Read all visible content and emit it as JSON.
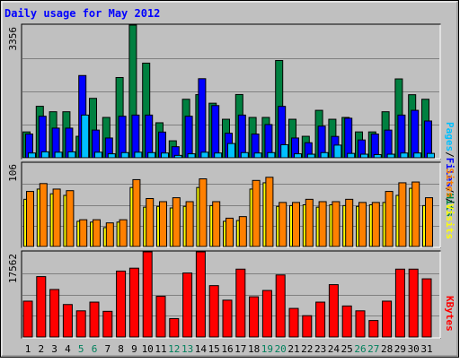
{
  "title": "Daily usage for May 2012",
  "colors": {
    "background": "#c0c0c0",
    "title": "#0000ff",
    "hits": "#008040",
    "files": "#0000ff",
    "pages": "#00c0ff",
    "visits": "#ffff00",
    "sites": "#ff8000",
    "kbytes": "#ff0000",
    "weekday_label": "#000000",
    "weekend_label": "#00805c"
  },
  "chart_data": [
    {
      "type": "bar",
      "categories": [
        "1",
        "2",
        "3",
        "4",
        "5",
        "6",
        "7",
        "8",
        "9",
        "10",
        "11",
        "12",
        "13",
        "14",
        "15",
        "16",
        "17",
        "18",
        "19",
        "20",
        "21",
        "22",
        "23",
        "24",
        "25",
        "26",
        "27",
        "28",
        "29",
        "30",
        "31"
      ],
      "weekend_days": [
        "5",
        "6",
        "12",
        "13",
        "19",
        "20",
        "26",
        "27"
      ],
      "ymax_label": "3356",
      "ylim": [
        0,
        3356
      ],
      "legend": [
        "Pages",
        "/",
        "Files",
        "/",
        "Hits"
      ],
      "series": [
        {
          "name": "Hits",
          "values": [
            654,
            1302,
            1164,
            1164,
            543,
            1503,
            1020,
            2030,
            3356,
            2394,
            885,
            429,
            1480,
            1597,
            1380,
            974,
            1600,
            1020,
            1020,
            2461,
            974,
            543,
            1200,
            974,
            1020,
            654,
            654,
            1164,
            1995,
            1595,
            1480
          ]
        },
        {
          "name": "Files",
          "values": [
            600,
            1050,
            750,
            750,
            2080,
            700,
            500,
            1050,
            1080,
            1080,
            650,
            280,
            1050,
            2000,
            1320,
            620,
            1080,
            600,
            840,
            1300,
            500,
            380,
            800,
            540,
            1000,
            450,
            600,
            700,
            1080,
            1200,
            930
          ]
        },
        {
          "name": "Pages",
          "values": [
            120,
            150,
            140,
            150,
            1080,
            140,
            100,
            130,
            140,
            130,
            120,
            60,
            100,
            140,
            120,
            360,
            130,
            120,
            130,
            330,
            100,
            90,
            130,
            320,
            110,
            90,
            80,
            90,
            120,
            120,
            110
          ]
        }
      ]
    },
    {
      "type": "bar",
      "categories": [
        "1",
        "2",
        "3",
        "4",
        "5",
        "6",
        "7",
        "8",
        "9",
        "10",
        "11",
        "12",
        "13",
        "14",
        "15",
        "16",
        "17",
        "18",
        "19",
        "20",
        "21",
        "22",
        "23",
        "24",
        "25",
        "26",
        "27",
        "28",
        "29",
        "30",
        "31"
      ],
      "ymax_label": "106",
      "ylim": [
        0,
        106
      ],
      "legend": [
        "Sites",
        "/",
        "Visits"
      ],
      "series": [
        {
          "name": "Sites",
          "values": [
            70,
            80,
            73,
            71,
            34,
            34,
            30,
            34,
            85,
            61,
            57,
            62,
            57,
            86,
            57,
            36,
            38,
            84,
            88,
            56,
            56,
            60,
            57,
            57,
            60,
            56,
            56,
            70,
            81,
            82,
            62
          ]
        },
        {
          "name": "Visits",
          "values": [
            60,
            73,
            67,
            65,
            32,
            31,
            24,
            31,
            75,
            50,
            51,
            49,
            51,
            75,
            52,
            32,
            33,
            73,
            81,
            51,
            52,
            53,
            50,
            53,
            52,
            51,
            53,
            56,
            65,
            74,
            52
          ]
        }
      ]
    },
    {
      "type": "bar",
      "categories": [
        "1",
        "2",
        "3",
        "4",
        "5",
        "6",
        "7",
        "8",
        "9",
        "10",
        "11",
        "12",
        "13",
        "14",
        "15",
        "16",
        "17",
        "18",
        "19",
        "20",
        "21",
        "22",
        "23",
        "24",
        "25",
        "26",
        "27",
        "28",
        "29",
        "30",
        "31"
      ],
      "ymax_label": "17562",
      "ylim": [
        0,
        17562
      ],
      "legend": [
        "KBytes"
      ],
      "series": [
        {
          "name": "KBytes",
          "values": [
            7400,
            12460,
            9800,
            6700,
            5400,
            7200,
            5300,
            13600,
            14200,
            17562,
            8400,
            3800,
            13200,
            17562,
            10600,
            7600,
            14000,
            8300,
            9600,
            12800,
            5900,
            4400,
            7200,
            10800,
            6400,
            5400,
            3400,
            7400,
            14000,
            14000,
            12000
          ]
        }
      ]
    }
  ]
}
